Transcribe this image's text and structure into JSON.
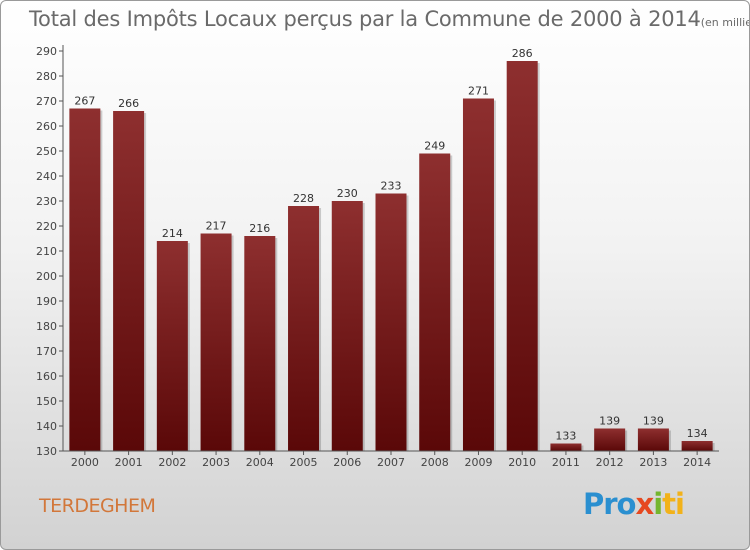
{
  "chart_data": {
    "type": "bar",
    "title": "Total des Impôts Locaux perçus par la Commune de 2000 à 2014",
    "title_unit": "(en milliers d'€)",
    "categories": [
      "2000",
      "2001",
      "2002",
      "2003",
      "2004",
      "2005",
      "2006",
      "2007",
      "2008",
      "2009",
      "2010",
      "2011",
      "2012",
      "2013",
      "2014"
    ],
    "values": [
      267,
      266,
      214,
      217,
      216,
      228,
      230,
      233,
      249,
      271,
      286,
      133,
      139,
      139,
      134
    ],
    "ylim": [
      130,
      290
    ],
    "yticks": [
      130,
      140,
      150,
      160,
      170,
      180,
      190,
      200,
      210,
      220,
      230,
      240,
      250,
      260,
      270,
      280,
      290
    ],
    "grid": false,
    "xlabel": "",
    "ylabel": "",
    "bar_color": "#7a1c1c"
  },
  "footer": {
    "commune": "TERDEGHEM",
    "logo_parts": [
      "Pro",
      "x",
      "i",
      "ti"
    ]
  }
}
